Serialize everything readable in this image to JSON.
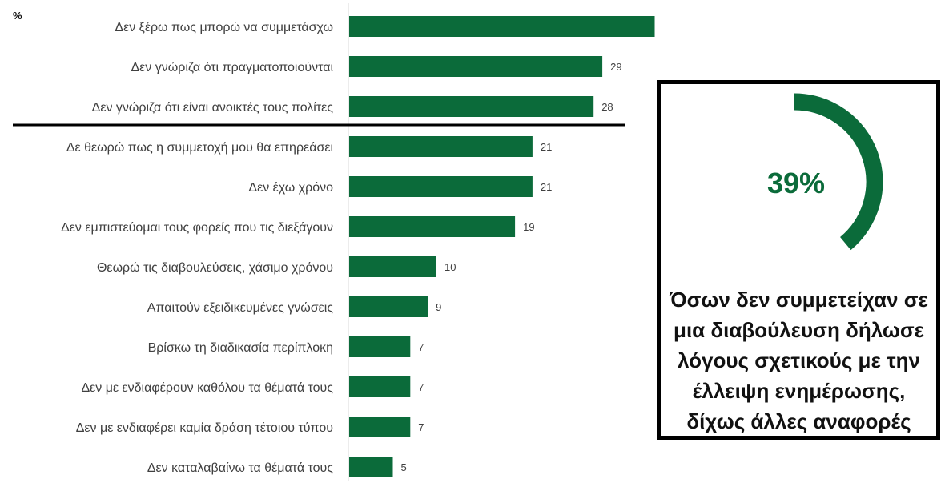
{
  "chart_data": {
    "type": "bar",
    "orientation": "horizontal",
    "unit_label": "%",
    "categories": [
      "Δεν ξέρω πως μπορώ να συμμετάσχω",
      "Δεν γνώριζα ότι πραγματοποιούνται",
      "Δεν γνώριζα ότι είναι ανοικτές τους πολίτες",
      "Δε θεωρώ πως η συμμετοχή μου θα επηρεάσει",
      "Δεν έχω χρόνο",
      "Δεν εμπιστεύομαι τους φορείς που τις διεξάγουν",
      "Θεωρώ τις διαβουλεύσεις, χάσιμο χρόνου",
      "Απαιτούν εξειδικευμένες γνώσεις",
      "Βρίσκω τη διαδικασία περίπλοκη",
      "Δεν με ενδιαφέρουν καθόλου τα θέματά τους",
      "Δεν με ενδιαφέρει καμία δράση τέτοιου τύπου",
      "Δεν καταλαβαίνω τα θέματά τους"
    ],
    "values": [
      35,
      29,
      28,
      21,
      21,
      19,
      10,
      9,
      7,
      7,
      7,
      5
    ],
    "xlim": [
      0,
      50
    ],
    "bar_color": "#0b6b3a",
    "separator_after_index": 2
  },
  "highlight": {
    "percent_value": 39,
    "percent_label": "39%",
    "accent_color": "#0b6b3a",
    "text": "Όσων δεν συμμετείχαν σε μια διαβούλευση δήλωσε λόγους σχετικούς με την έλλειψη ενημέρωσης, δίχως άλλες αναφορές"
  }
}
